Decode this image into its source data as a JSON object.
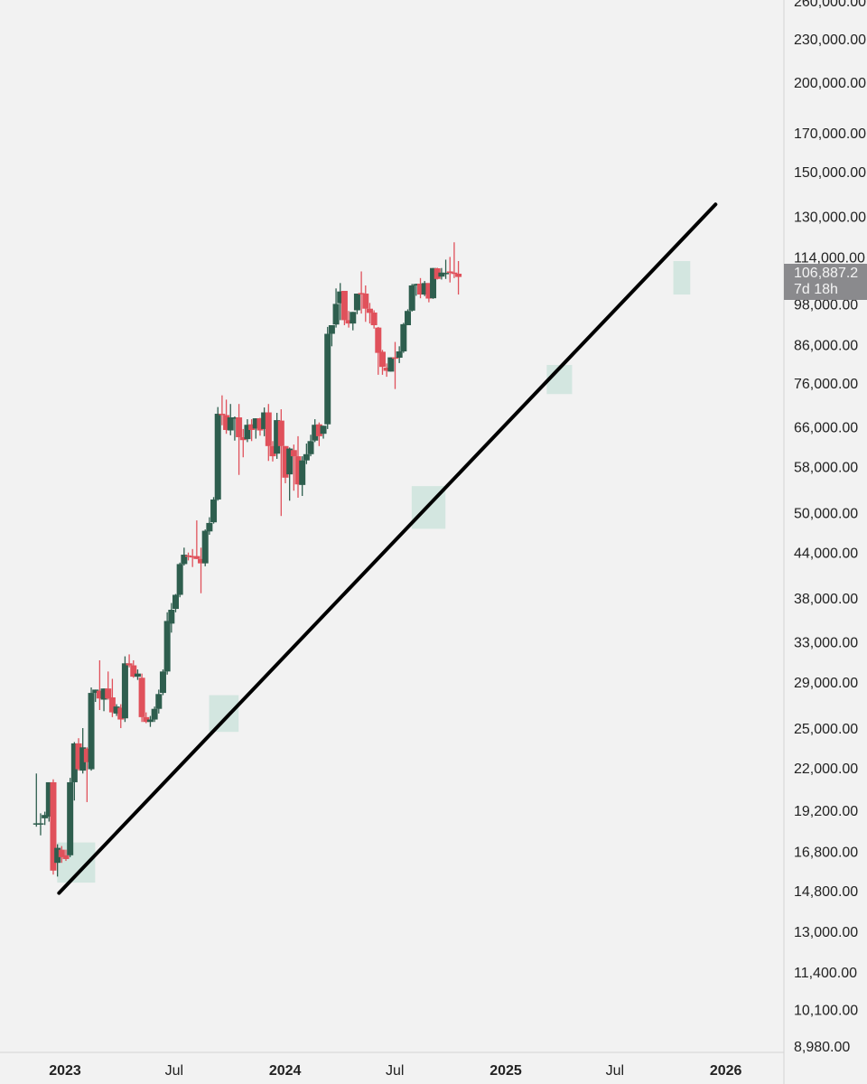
{
  "chart_data": {
    "type": "candlestick",
    "scale": "log",
    "interval": "weekly",
    "grid": false,
    "y_ticks": [
      "260,000.00",
      "230,000.00",
      "200,000.00",
      "170,000.00",
      "150,000.00",
      "130,000.00",
      "114,000.00",
      "98,000.00",
      "86,000.00",
      "76,000.00",
      "66,000.00",
      "58,000.00",
      "50,000.00",
      "44,000.00",
      "38,000.00",
      "33,000.00",
      "29,000.00",
      "25,000.00",
      "22,000.00",
      "19,200.00",
      "16,800.00",
      "14,800.00",
      "13,000.00",
      "11,400.00",
      "10,100.00",
      "8,980.00"
    ],
    "x_ticks": [
      {
        "label": "2023",
        "date": "2023-01-01",
        "major": true
      },
      {
        "label": "Jul",
        "date": "2023-07-01",
        "major": false
      },
      {
        "label": "2024",
        "date": "2024-01-01",
        "major": true
      },
      {
        "label": "Jul",
        "date": "2024-07-01",
        "major": false
      },
      {
        "label": "2025",
        "date": "2025-01-01",
        "major": true
      },
      {
        "label": "Jul",
        "date": "2025-07-01",
        "major": false
      },
      {
        "label": "2026",
        "date": "2026-01-01",
        "major": true
      }
    ],
    "last_price": {
      "value": "106,887.2",
      "countdown": "7d 18h"
    },
    "trendline": {
      "start": {
        "date": "2022-12-22",
        "price": 14700
      },
      "end": {
        "date": "2025-12-15",
        "price": 135000
      }
    },
    "support_zones": [
      {
        "start": "2022-12-19",
        "end": "2023-02-20",
        "low": 15200,
        "high": 17300
      },
      {
        "start": "2023-08-28",
        "end": "2023-10-16",
        "low": 24700,
        "high": 27800
      },
      {
        "start": "2024-07-29",
        "end": "2024-09-23",
        "low": 47500,
        "high": 54500
      },
      {
        "start": "2025-03-10",
        "end": "2025-04-21",
        "low": 73300,
        "high": 80500
      },
      {
        "start": "2025-10-06",
        "end": "2025-11-03",
        "low": 101000,
        "high": 112500
      }
    ],
    "candles": [
      {
        "date": "2022-11-07",
        "o": 18400,
        "h": 21600,
        "l": 18200,
        "c": 18400
      },
      {
        "date": "2022-11-14",
        "o": 18400,
        "h": 19000,
        "l": 17700,
        "c": 18400
      },
      {
        "date": "2022-11-21",
        "o": 18700,
        "h": 19100,
        "l": 18300,
        "c": 18900
      },
      {
        "date": "2022-11-28",
        "o": 18800,
        "h": 20100,
        "l": 18500,
        "c": 21000
      },
      {
        "date": "2022-12-05",
        "o": 21000,
        "h": 21200,
        "l": 15600,
        "c": 15800
      },
      {
        "date": "2022-12-12",
        "o": 16200,
        "h": 17200,
        "l": 15500,
        "c": 17000
      },
      {
        "date": "2022-12-19",
        "o": 16900,
        "h": 17100,
        "l": 16200,
        "c": 16500
      },
      {
        "date": "2022-12-26",
        "o": 16600,
        "h": 16900,
        "l": 16300,
        "c": 16400
      },
      {
        "date": "2023-01-02",
        "o": 16600,
        "h": 21300,
        "l": 16500,
        "c": 21000
      },
      {
        "date": "2023-01-09",
        "o": 21000,
        "h": 23900,
        "l": 19800,
        "c": 23800
      },
      {
        "date": "2023-01-16",
        "o": 23800,
        "h": 24200,
        "l": 21800,
        "c": 21900
      },
      {
        "date": "2023-01-23",
        "o": 21800,
        "h": 25000,
        "l": 21600,
        "c": 23500
      },
      {
        "date": "2023-01-30",
        "o": 23400,
        "h": 23500,
        "l": 19700,
        "c": 22400
      },
      {
        "date": "2023-02-06",
        "o": 21900,
        "h": 28500,
        "l": 21800,
        "c": 28000
      },
      {
        "date": "2023-02-13",
        "o": 28000,
        "h": 28100,
        "l": 27200,
        "c": 28300
      },
      {
        "date": "2023-02-20",
        "o": 28200,
        "h": 31100,
        "l": 26500,
        "c": 27500
      },
      {
        "date": "2023-02-27",
        "o": 27400,
        "h": 28000,
        "l": 26400,
        "c": 28400
      },
      {
        "date": "2023-03-06",
        "o": 28400,
        "h": 30000,
        "l": 27400,
        "c": 27500
      },
      {
        "date": "2023-03-13",
        "o": 27600,
        "h": 29300,
        "l": 25900,
        "c": 26300
      },
      {
        "date": "2023-03-20",
        "o": 26200,
        "h": 27000,
        "l": 26000,
        "c": 26800
      },
      {
        "date": "2023-03-27",
        "o": 26700,
        "h": 27000,
        "l": 25000,
        "c": 25700
      },
      {
        "date": "2023-04-03",
        "o": 25800,
        "h": 31500,
        "l": 25500,
        "c": 30800
      },
      {
        "date": "2023-04-10",
        "o": 30800,
        "h": 31700,
        "l": 30400,
        "c": 30600
      },
      {
        "date": "2023-04-17",
        "o": 30600,
        "h": 31100,
        "l": 29400,
        "c": 29500
      },
      {
        "date": "2023-04-24",
        "o": 29500,
        "h": 30200,
        "l": 29200,
        "c": 29800
      },
      {
        "date": "2023-05-01",
        "o": 29400,
        "h": 29800,
        "l": 25500,
        "c": 25900
      },
      {
        "date": "2023-05-08",
        "o": 25900,
        "h": 26300,
        "l": 25400,
        "c": 25500
      },
      {
        "date": "2023-05-15",
        "o": 25500,
        "h": 26000,
        "l": 25100,
        "c": 25700
      },
      {
        "date": "2023-05-22",
        "o": 25700,
        "h": 26800,
        "l": 25500,
        "c": 26600
      },
      {
        "date": "2023-05-29",
        "o": 26600,
        "h": 28300,
        "l": 26200,
        "c": 27900
      },
      {
        "date": "2023-06-05",
        "o": 28000,
        "h": 30200,
        "l": 27800,
        "c": 30000
      },
      {
        "date": "2023-06-12",
        "o": 30000,
        "h": 36300,
        "l": 29700,
        "c": 35300
      },
      {
        "date": "2023-06-19",
        "o": 35000,
        "h": 37400,
        "l": 34000,
        "c": 36600
      },
      {
        "date": "2023-06-26",
        "o": 36700,
        "h": 38500,
        "l": 36300,
        "c": 38400
      },
      {
        "date": "2023-07-03",
        "o": 38400,
        "h": 42600,
        "l": 38100,
        "c": 42400
      },
      {
        "date": "2023-07-10",
        "o": 42400,
        "h": 44700,
        "l": 42200,
        "c": 43700
      },
      {
        "date": "2023-07-17",
        "o": 43600,
        "h": 44000,
        "l": 42900,
        "c": 43500
      },
      {
        "date": "2023-07-24",
        "o": 43500,
        "h": 44500,
        "l": 42000,
        "c": 43400
      },
      {
        "date": "2023-07-31",
        "o": 43500,
        "h": 48800,
        "l": 43200,
        "c": 43100
      },
      {
        "date": "2023-08-07",
        "o": 43100,
        "h": 44700,
        "l": 38600,
        "c": 42500
      },
      {
        "date": "2023-08-14",
        "o": 42500,
        "h": 47400,
        "l": 42100,
        "c": 47200
      },
      {
        "date": "2023-08-21",
        "o": 47100,
        "h": 49300,
        "l": 46600,
        "c": 48400
      },
      {
        "date": "2023-08-28",
        "o": 48500,
        "h": 52600,
        "l": 48300,
        "c": 52200
      },
      {
        "date": "2023-09-04",
        "o": 52200,
        "h": 70300,
        "l": 52000,
        "c": 68800
      },
      {
        "date": "2023-09-11",
        "o": 68800,
        "h": 73000,
        "l": 66300,
        "c": 68600
      },
      {
        "date": "2023-09-18",
        "o": 68500,
        "h": 72000,
        "l": 64500,
        "c": 65300
      },
      {
        "date": "2023-09-25",
        "o": 65200,
        "h": 71000,
        "l": 64200,
        "c": 68000
      },
      {
        "date": "2023-10-02",
        "o": 68000,
        "h": 68200,
        "l": 63100,
        "c": 68000
      },
      {
        "date": "2023-10-09",
        "o": 68000,
        "h": 71000,
        "l": 56500,
        "c": 63800
      },
      {
        "date": "2023-10-16",
        "o": 63800,
        "h": 65500,
        "l": 59800,
        "c": 63200
      },
      {
        "date": "2023-10-23",
        "o": 63400,
        "h": 67600,
        "l": 62800,
        "c": 66400
      },
      {
        "date": "2023-10-30",
        "o": 66500,
        "h": 67600,
        "l": 63000,
        "c": 65300
      },
      {
        "date": "2023-11-06",
        "o": 65600,
        "h": 67800,
        "l": 63500,
        "c": 67800
      },
      {
        "date": "2023-11-13",
        "o": 67800,
        "h": 67900,
        "l": 64100,
        "c": 65200
      },
      {
        "date": "2023-11-20",
        "o": 65500,
        "h": 70200,
        "l": 64000,
        "c": 69100
      },
      {
        "date": "2023-11-27",
        "o": 69100,
        "h": 71000,
        "l": 59100,
        "c": 62000
      },
      {
        "date": "2023-12-04",
        "o": 62000,
        "h": 63000,
        "l": 59000,
        "c": 60000
      },
      {
        "date": "2023-12-11",
        "o": 60500,
        "h": 69000,
        "l": 59500,
        "c": 67400
      },
      {
        "date": "2023-12-18",
        "o": 67300,
        "h": 69800,
        "l": 49500,
        "c": 62000
      },
      {
        "date": "2023-12-25",
        "o": 62000,
        "h": 61500,
        "l": 55000,
        "c": 56000
      },
      {
        "date": "2024-01-01",
        "o": 56600,
        "h": 61700,
        "l": 52000,
        "c": 61500
      },
      {
        "date": "2024-01-08",
        "o": 61200,
        "h": 62300,
        "l": 53700,
        "c": 60000
      },
      {
        "date": "2024-01-15",
        "o": 60000,
        "h": 64000,
        "l": 52500,
        "c": 54800
      },
      {
        "date": "2024-01-22",
        "o": 54700,
        "h": 60000,
        "l": 52800,
        "c": 59200
      },
      {
        "date": "2024-01-29",
        "o": 59200,
        "h": 62500,
        "l": 58500,
        "c": 60400
      },
      {
        "date": "2024-02-05",
        "o": 60400,
        "h": 64300,
        "l": 60000,
        "c": 63000
      },
      {
        "date": "2024-02-12",
        "o": 63100,
        "h": 67600,
        "l": 62800,
        "c": 66400
      },
      {
        "date": "2024-02-19",
        "o": 66500,
        "h": 66900,
        "l": 62000,
        "c": 64000
      },
      {
        "date": "2024-02-26",
        "o": 64500,
        "h": 66200,
        "l": 63500,
        "c": 66200
      },
      {
        "date": "2024-03-04",
        "o": 66500,
        "h": 91000,
        "l": 65500,
        "c": 89000
      },
      {
        "date": "2024-03-11",
        "o": 89000,
        "h": 91400,
        "l": 85500,
        "c": 91500
      },
      {
        "date": "2024-03-18",
        "o": 91700,
        "h": 103000,
        "l": 90800,
        "c": 98000
      },
      {
        "date": "2024-03-25",
        "o": 98200,
        "h": 104800,
        "l": 93000,
        "c": 102000
      },
      {
        "date": "2024-04-01",
        "o": 102200,
        "h": 102000,
        "l": 91500,
        "c": 93000
      },
      {
        "date": "2024-04-08",
        "o": 93000,
        "h": 95800,
        "l": 90800,
        "c": 92000
      },
      {
        "date": "2024-04-15",
        "o": 92000,
        "h": 95500,
        "l": 90000,
        "c": 95500
      },
      {
        "date": "2024-04-22",
        "o": 96000,
        "h": 100400,
        "l": 94800,
        "c": 101300
      },
      {
        "date": "2024-04-29",
        "o": 101500,
        "h": 108800,
        "l": 95000,
        "c": 101300
      },
      {
        "date": "2024-05-06",
        "o": 101300,
        "h": 104000,
        "l": 92500,
        "c": 96500
      },
      {
        "date": "2024-05-13",
        "o": 96500,
        "h": 98300,
        "l": 92000,
        "c": 95200
      },
      {
        "date": "2024-05-20",
        "o": 95300,
        "h": 96000,
        "l": 90500,
        "c": 91500
      },
      {
        "date": "2024-05-27",
        "o": 90800,
        "h": 91000,
        "l": 78000,
        "c": 83700
      },
      {
        "date": "2024-06-03",
        "o": 84000,
        "h": 84500,
        "l": 78000,
        "c": 80000
      },
      {
        "date": "2024-06-10",
        "o": 79800,
        "h": 80900,
        "l": 77500,
        "c": 79000
      },
      {
        "date": "2024-06-17",
        "o": 78800,
        "h": 82300,
        "l": 79600,
        "c": 82500
      },
      {
        "date": "2024-06-24",
        "o": 82500,
        "h": 86700,
        "l": 74500,
        "c": 82400
      },
      {
        "date": "2024-07-01",
        "o": 82400,
        "h": 85500,
        "l": 81000,
        "c": 84100
      },
      {
        "date": "2024-07-08",
        "o": 84100,
        "h": 92200,
        "l": 83700,
        "c": 91800
      },
      {
        "date": "2024-07-15",
        "o": 91500,
        "h": 96300,
        "l": 91500,
        "c": 95800
      },
      {
        "date": "2024-07-22",
        "o": 95900,
        "h": 104500,
        "l": 95600,
        "c": 104000
      },
      {
        "date": "2024-07-29",
        "o": 104000,
        "h": 104600,
        "l": 100600,
        "c": 104500
      },
      {
        "date": "2024-08-05",
        "o": 104600,
        "h": 106500,
        "l": 99800,
        "c": 101000
      },
      {
        "date": "2024-08-12",
        "o": 101000,
        "h": 105500,
        "l": 100500,
        "c": 104800
      },
      {
        "date": "2024-08-19",
        "o": 104800,
        "h": 104500,
        "l": 98500,
        "c": 99700
      },
      {
        "date": "2024-08-26",
        "o": 99800,
        "h": 110000,
        "l": 99600,
        "c": 110000
      },
      {
        "date": "2024-09-02",
        "o": 109900,
        "h": 110100,
        "l": 106000,
        "c": 106200
      },
      {
        "date": "2024-09-09",
        "o": 107000,
        "h": 110000,
        "l": 106000,
        "c": 108400
      },
      {
        "date": "2024-09-16",
        "o": 108000,
        "h": 113000,
        "l": 106200,
        "c": 108300
      },
      {
        "date": "2024-09-23",
        "o": 108800,
        "h": 114000,
        "l": 105000,
        "c": 108400
      },
      {
        "date": "2024-09-30",
        "o": 108400,
        "h": 119500,
        "l": 106500,
        "c": 108000
      },
      {
        "date": "2024-10-07",
        "o": 108000,
        "h": 112500,
        "l": 101000,
        "c": 106887
      }
    ]
  }
}
